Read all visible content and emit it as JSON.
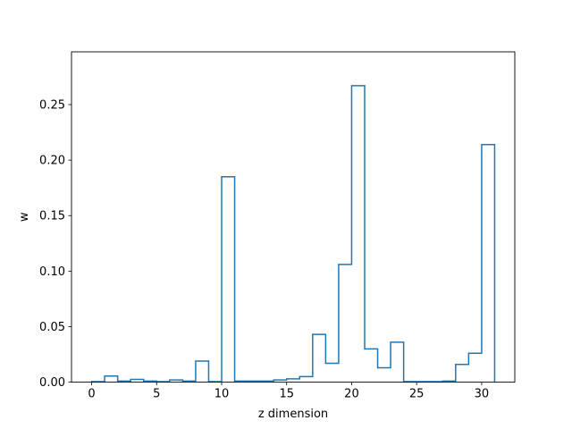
{
  "chart_data": {
    "type": "step",
    "title": "",
    "xlabel": "z dimension",
    "ylabel": "w",
    "xlim": [
      -1.55,
      32.55
    ],
    "ylim": [
      0,
      0.2975
    ],
    "xticks": [
      0,
      5,
      10,
      15,
      20,
      25,
      30
    ],
    "yticks": [
      0.0,
      0.05,
      0.1,
      0.15,
      0.2,
      0.25
    ],
    "ytick_labels": [
      "0.00",
      "0.05",
      "0.10",
      "0.15",
      "0.20",
      "0.25"
    ],
    "grid": false,
    "line_color": "#1f77b4",
    "x_edges": [
      0,
      1,
      2,
      3,
      4,
      5,
      6,
      7,
      8,
      9,
      10,
      11,
      12,
      13,
      14,
      15,
      16,
      17,
      18,
      19,
      20,
      21,
      22,
      23,
      24,
      25,
      26,
      27,
      28,
      29,
      30,
      31
    ],
    "values": [
      0.0005,
      0.0055,
      0.001,
      0.0025,
      0.001,
      0.0005,
      0.002,
      0.001,
      0.019,
      0.0005,
      0.185,
      0.001,
      0.001,
      0.001,
      0.002,
      0.003,
      0.005,
      0.043,
      0.017,
      0.106,
      0.267,
      0.03,
      0.013,
      0.036,
      0.0005,
      0.0005,
      0.0005,
      0.001,
      0.016,
      0.026,
      0.214
    ]
  }
}
